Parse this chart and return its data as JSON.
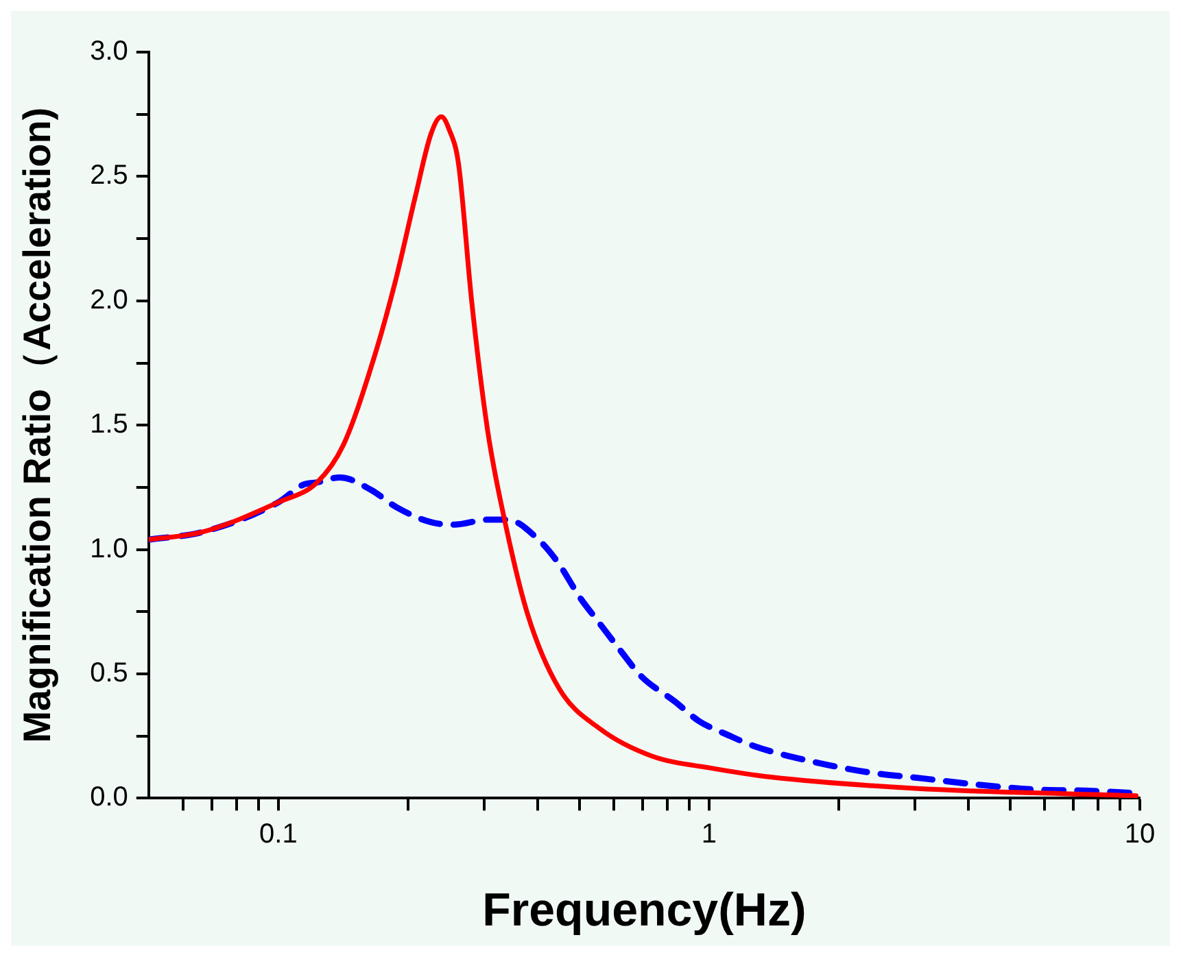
{
  "chart_data": {
    "type": "line",
    "xlabel": "Frequency(Hz)",
    "ylabel": "Magnification Ratio（Acceleration)",
    "log": "x",
    "xlim": [
      0.05,
      10
    ],
    "xticks": [
      {
        "value": 0.06,
        "label": null
      },
      {
        "value": 0.07,
        "label": null
      },
      {
        "value": 0.08,
        "label": null
      },
      {
        "value": 0.09,
        "label": null
      },
      0.1,
      {
        "value": 0.2,
        "label": null
      },
      {
        "value": 0.3,
        "label": null
      },
      {
        "value": 0.4,
        "label": null
      },
      {
        "value": 0.5,
        "label": null
      },
      {
        "value": 0.6,
        "label": null
      },
      {
        "value": 0.7,
        "label": null
      },
      {
        "value": 0.8,
        "label": null
      },
      {
        "value": 0.9,
        "label": null
      },
      1,
      {
        "value": 2,
        "label": null
      },
      {
        "value": 3,
        "label": null
      },
      {
        "value": 4,
        "label": null
      },
      {
        "value": 5,
        "label": null
      },
      {
        "value": 6,
        "label": null
      },
      {
        "value": 7,
        "label": null
      },
      {
        "value": 8,
        "label": null
      },
      {
        "value": 9,
        "label": null
      },
      10
    ],
    "ylim": [
      0,
      3
    ],
    "yticks": [
      {
        "value": 0,
        "label": "0.0"
      },
      {
        "value": 0.25,
        "label": null
      },
      {
        "value": 0.5,
        "label": "0.5"
      },
      {
        "value": 0.75,
        "label": null
      },
      {
        "value": 1,
        "label": "1.0"
      },
      {
        "value": 1.25,
        "label": null
      },
      {
        "value": 1.5,
        "label": "1.5"
      },
      {
        "value": 1.75,
        "label": null
      },
      {
        "value": 2,
        "label": "2.0"
      },
      {
        "value": 2.25,
        "label": null
      },
      {
        "value": 2.5,
        "label": "2.5"
      },
      {
        "value": 2.75,
        "label": null
      },
      {
        "value": 3,
        "label": "3.0"
      }
    ],
    "grid": false,
    "legend": false,
    "marker": "none",
    "series": [
      {
        "color": "#ff0000",
        "line_style": "solid",
        "x": [
          0.05,
          0.0665,
          0.1,
          0.123,
          0.1415,
          0.166,
          0.187,
          0.208,
          0.226,
          0.239,
          0.249,
          0.262,
          0.281,
          0.306,
          0.335,
          0.379,
          0.449,
          0.557,
          0.735,
          1.02,
          1.39,
          3.0,
          9.8
        ],
        "values": [
          1.04,
          1.07,
          1.19,
          1.27,
          1.42,
          1.76,
          2.08,
          2.42,
          2.67,
          2.74,
          2.69,
          2.55,
          2.0,
          1.48,
          1.12,
          0.74,
          0.44,
          0.28,
          0.17,
          0.12,
          0.085,
          0.04,
          0.01
        ]
      },
      {
        "color": "#0000ff",
        "line_style": "dashed",
        "x": [
          0.05,
          0.0665,
          0.1,
          0.114,
          0.123,
          0.139,
          0.164,
          0.188,
          0.226,
          0.256,
          0.306,
          0.34,
          0.407,
          0.449,
          0.5,
          0.553,
          0.625,
          0.696,
          0.831,
          0.948,
          1.12,
          1.27,
          1.71,
          2.33,
          3.12,
          4.18,
          5.7,
          7.6,
          9.8
        ],
        "values": [
          1.04,
          1.07,
          1.19,
          1.26,
          1.27,
          1.29,
          1.24,
          1.17,
          1.11,
          1.1,
          1.12,
          1.12,
          1.03,
          0.94,
          0.81,
          0.71,
          0.59,
          0.49,
          0.39,
          0.31,
          0.25,
          0.21,
          0.15,
          0.105,
          0.08,
          0.055,
          0.035,
          0.03,
          0.02
        ]
      }
    ]
  }
}
